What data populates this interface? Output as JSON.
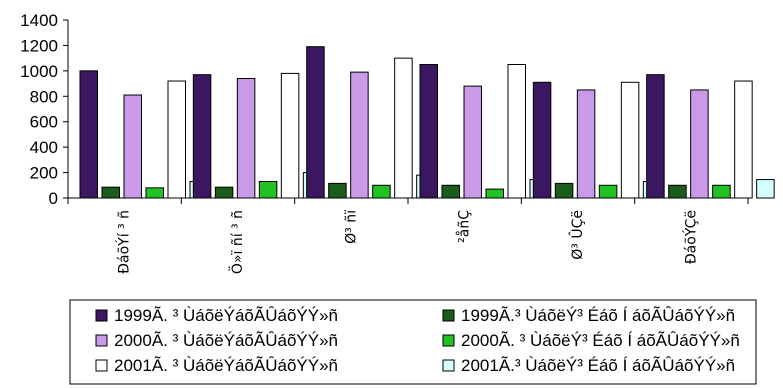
{
  "chart_data": {
    "type": "bar",
    "categories": [
      "ÐáõÝí ³ ñ",
      "Ö»ï ñí ³ ñ",
      "Ø³ ñï",
      "²åñÇ",
      "Ø³ ÛÇë",
      "ÐáõÝÇë"
    ],
    "series": [
      {
        "name": "1999Ã. ³ ÙáõëÝáõÃÛáõÝÝ»ñ",
        "color": "#3a1760",
        "values": [
          1000,
          970,
          1190,
          1050,
          910,
          970
        ]
      },
      {
        "name": "1999Ã.³ ÙáõëÝ³ Éáõ Í áõÃÛáõÝÝ»ñ",
        "color": "#1b5e1b",
        "values": [
          85,
          85,
          115,
          100,
          115,
          100
        ]
      },
      {
        "name": "2000Ã. ³ ÙáõëÝáõÃÛáõÝÝ»ñ",
        "color": "#c99ae8",
        "values": [
          810,
          940,
          990,
          880,
          850,
          850
        ]
      },
      {
        "name": "2000Ã. ³ ÙáõëÝ³ Éáõ Í áõÃÛáõÝÝ»ñ",
        "color": "#21c221",
        "values": [
          80,
          130,
          100,
          70,
          100,
          100
        ]
      },
      {
        "name": "2001Ã. ³ ÙáõëÝáõÃÛáõÝÝ»ñ",
        "color": "#ffffff",
        "values": [
          920,
          980,
          1100,
          1050,
          910,
          920
        ]
      },
      {
        "name": "2001Ã.³ ÙáõëÝ³ Éáõ Í áõÃÛáõÝÝ»ñ",
        "color": "#d4ffff",
        "values": [
          130,
          200,
          180,
          145,
          130,
          145
        ]
      }
    ],
    "ylim": [
      0,
      1400
    ],
    "yticks": [
      0,
      200,
      400,
      600,
      800,
      1000,
      1200,
      1400
    ],
    "title": "",
    "xlabel": "",
    "ylabel": "",
    "grid": false,
    "legend_position": "bottom"
  }
}
